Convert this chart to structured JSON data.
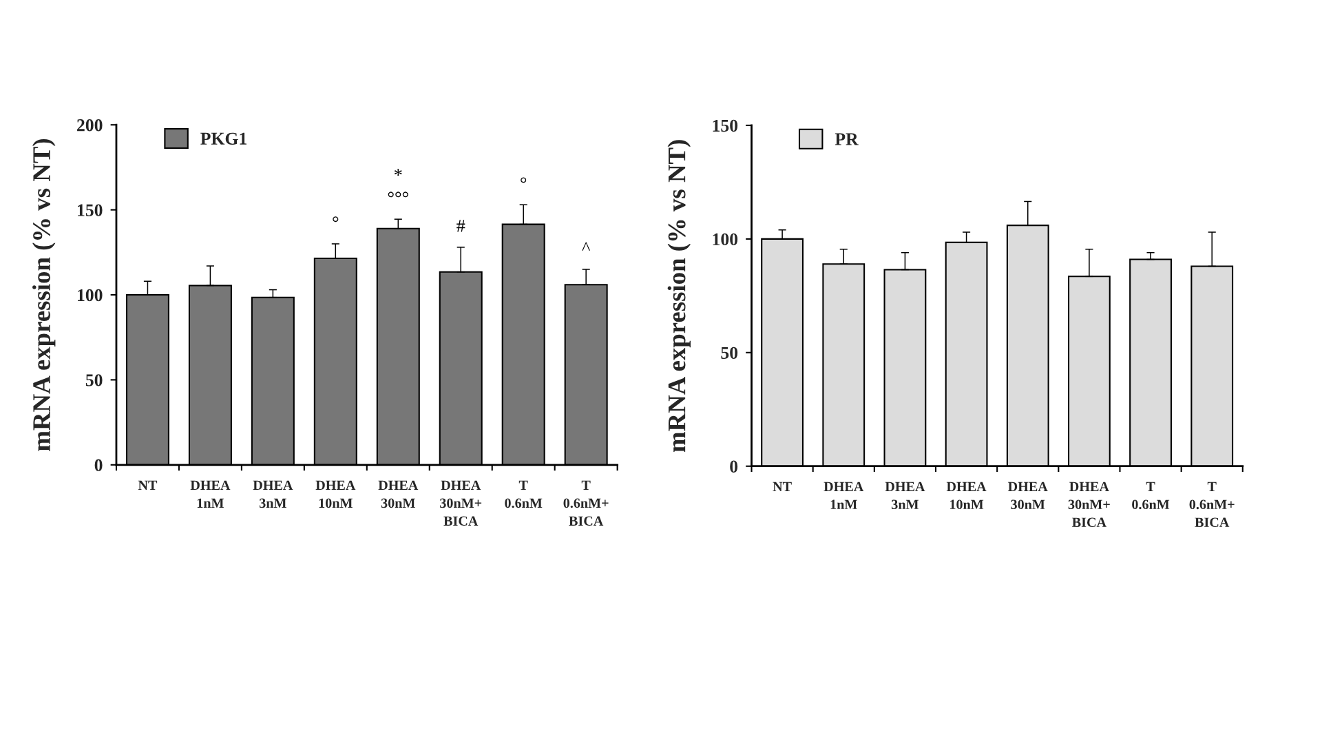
{
  "chart_data": [
    {
      "type": "bar",
      "categories": [
        "NT",
        "DHEA\n1nM",
        "DHEA\n3nM",
        "DHEA\n10nM",
        "DHEA\n30nM",
        "DHEA\n30nM+\nBICA",
        "T\n0.6nM",
        "T\n0.6nM+\nBICA"
      ],
      "series": [
        {
          "name": "PKG1",
          "color": "#777777",
          "values": [
            100,
            105.5,
            98.5,
            121.5,
            139,
            113.5,
            141.5,
            106
          ],
          "errors": [
            [
              100,
              108
            ],
            [
              105.5,
              117
            ],
            [
              98.5,
              103
            ],
            [
              121.5,
              130
            ],
            [
              139,
              144.5
            ],
            [
              113.5,
              128
            ],
            [
              141.5,
              153
            ],
            [
              106,
              115
            ]
          ]
        }
      ],
      "ylabel": "mRNA expression (% vs NT)",
      "ylim": [
        0,
        200
      ],
      "yticks": [
        0,
        50,
        100,
        150,
        200
      ],
      "legend": "top left",
      "annotations": [
        {
          "text": "°",
          "x": "DHEA\n10nM",
          "y": 121.5
        },
        {
          "text": "°°°",
          "x": "DHEA\n30nM",
          "y": 139
        },
        {
          "text": "*",
          "x": "DHEA\n30nM",
          "y": 139
        },
        {
          "text": "#",
          "x": "DHEA\n30nM+\nBICA",
          "y": 113.5
        },
        {
          "text": "°",
          "x": "T\n0.6nM",
          "y": 141.5
        },
        {
          "text": "^",
          "x": "T\n0.6nM+\nBICA",
          "y": 106
        }
      ]
    },
    {
      "type": "bar",
      "categories": [
        "NT",
        "DHEA\n1nM",
        "DHEA\n3nM",
        "DHEA\n10nM",
        "DHEA\n30nM",
        "DHEA\n30nM+\nBICA",
        "T\n0.6nM",
        "T\n0.6nM+\nBICA"
      ],
      "series": [
        {
          "name": "PR",
          "color": "#dcdcdc",
          "values": [
            100,
            89,
            86.5,
            98.5,
            106,
            83.5,
            91,
            88
          ],
          "errors": [
            [
              100,
              104
            ],
            [
              89,
              95.5
            ],
            [
              86.5,
              94
            ],
            [
              98.5,
              103
            ],
            [
              106,
              116.5
            ],
            [
              83.5,
              95.5
            ],
            [
              91,
              94
            ],
            [
              88,
              103
            ]
          ]
        }
      ],
      "ylabel": "mRNA expression (% vs NT)",
      "ylim": [
        0,
        150
      ],
      "yticks": [
        0,
        50,
        100,
        150
      ],
      "legend": "top left"
    }
  ]
}
